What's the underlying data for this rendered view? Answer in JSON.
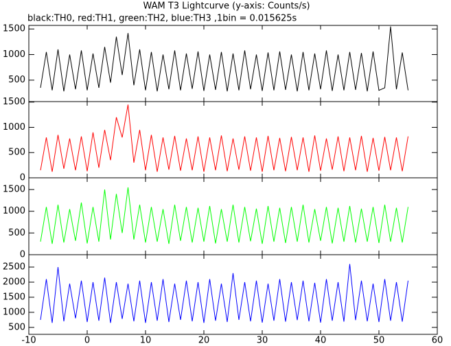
{
  "chart_data": [
    {
      "type": "line",
      "title": "WAM T3 Lightcurve (y-axis: Counts/s)",
      "subtitle": "black:TH0, red:TH1, green:TH2, blue:TH3 ,1bin = 0.015625s",
      "x": [
        -8,
        -7,
        -6,
        -5,
        -4,
        -3,
        -2,
        -1,
        0,
        1,
        2,
        3,
        4,
        5,
        6,
        7,
        8,
        9,
        10,
        11,
        12,
        13,
        14,
        15,
        16,
        17,
        18,
        19,
        20,
        21,
        22,
        23,
        24,
        25,
        26,
        27,
        28,
        29,
        30,
        31,
        32,
        33,
        34,
        35,
        36,
        37,
        38,
        39,
        40,
        41,
        42,
        43,
        44,
        45,
        46,
        47,
        48,
        49,
        50,
        51,
        52,
        53,
        54,
        55
      ],
      "series": [
        {
          "color": "#000000",
          "values": [
            350,
            1050,
            300,
            1100,
            280,
            1000,
            320,
            1080,
            300,
            1020,
            350,
            1150,
            450,
            1350,
            600,
            1420,
            400,
            1100,
            300,
            1050,
            280,
            1000,
            320,
            1080,
            300,
            1020,
            330,
            1060,
            290,
            1000,
            310,
            1050,
            280,
            1020,
            300,
            1080,
            320,
            1000,
            290,
            1040,
            300,
            1060,
            310,
            1000,
            280,
            1050,
            300,
            1020,
            320,
            1080,
            290,
            1000,
            300,
            1050,
            310,
            1030,
            280,
            1060,
            300,
            350,
            1550,
            320,
            1040,
            300
          ]
        }
      ],
      "ylim": [
        80,
        1570
      ],
      "yticks": [
        500,
        1000,
        1500
      ]
    },
    {
      "type": "line",
      "x": [
        -8,
        -7,
        -6,
        -5,
        -4,
        -3,
        -2,
        -1,
        0,
        1,
        2,
        3,
        4,
        5,
        6,
        7,
        8,
        9,
        10,
        11,
        12,
        13,
        14,
        15,
        16,
        17,
        18,
        19,
        20,
        21,
        22,
        23,
        24,
        25,
        26,
        27,
        28,
        29,
        30,
        31,
        32,
        33,
        34,
        35,
        36,
        37,
        38,
        39,
        40,
        41,
        42,
        43,
        44,
        45,
        46,
        47,
        48,
        49,
        50,
        51,
        52,
        53,
        54,
        55
      ],
      "series": [
        {
          "color": "#ff0000",
          "values": [
            150,
            800,
            120,
            850,
            180,
            780,
            150,
            820,
            130,
            900,
            200,
            950,
            350,
            1200,
            800,
            1450,
            300,
            950,
            150,
            850,
            120,
            800,
            160,
            830,
            140,
            780,
            150,
            820,
            120,
            800,
            150,
            840,
            130,
            780,
            160,
            820,
            140,
            800,
            120,
            830,
            150,
            790,
            130,
            810,
            150,
            800,
            120,
            840,
            140,
            780,
            160,
            820,
            130,
            800,
            150,
            830,
            120,
            790,
            140,
            810,
            150,
            800,
            130,
            820
          ]
        }
      ],
      "ylim": [
        0,
        1510
      ],
      "yticks": [
        0,
        500,
        1000,
        1500
      ]
    },
    {
      "type": "line",
      "x": [
        -8,
        -7,
        -6,
        -5,
        -4,
        -3,
        -2,
        -1,
        0,
        1,
        2,
        3,
        4,
        5,
        6,
        7,
        8,
        9,
        10,
        11,
        12,
        13,
        14,
        15,
        16,
        17,
        18,
        19,
        20,
        21,
        22,
        23,
        24,
        25,
        26,
        27,
        28,
        29,
        30,
        31,
        32,
        33,
        34,
        35,
        36,
        37,
        38,
        39,
        40,
        41,
        42,
        43,
        44,
        45,
        46,
        47,
        48,
        49,
        50,
        51,
        52,
        53,
        54,
        55
      ],
      "series": [
        {
          "color": "#00ff00",
          "values": [
            300,
            1100,
            250,
            1150,
            280,
            1050,
            320,
            1200,
            260,
            1100,
            300,
            1500,
            350,
            1400,
            500,
            1550,
            350,
            1150,
            280,
            1100,
            300,
            1050,
            250,
            1150,
            320,
            1100,
            280,
            1080,
            300,
            1120,
            260,
            1050,
            300,
            1150,
            280,
            1100,
            310,
            1060,
            250,
            1120,
            300,
            1080,
            270,
            1100,
            300,
            1150,
            280,
            1050,
            320,
            1100,
            260,
            1080,
            300,
            1120,
            280,
            1060,
            300,
            1100,
            270,
            1150,
            300,
            1080,
            280,
            1100
          ]
        }
      ],
      "ylim": [
        0,
        1770
      ],
      "yticks": [
        0,
        500,
        1000,
        1500
      ]
    },
    {
      "type": "line",
      "x": [
        -8,
        -7,
        -6,
        -5,
        -4,
        -3,
        -2,
        -1,
        0,
        1,
        2,
        3,
        4,
        5,
        6,
        7,
        8,
        9,
        10,
        11,
        12,
        13,
        14,
        15,
        16,
        17,
        18,
        19,
        20,
        21,
        22,
        23,
        24,
        25,
        26,
        27,
        28,
        29,
        30,
        31,
        32,
        33,
        34,
        35,
        36,
        37,
        38,
        39,
        40,
        41,
        42,
        43,
        44,
        45,
        46,
        47,
        48,
        49,
        50,
        51,
        52,
        53,
        54,
        55
      ],
      "series": [
        {
          "color": "#0000ff",
          "values": [
            750,
            2100,
            650,
            2500,
            700,
            1950,
            800,
            2050,
            680,
            2000,
            720,
            2150,
            650,
            2000,
            780,
            1950,
            700,
            2050,
            650,
            2000,
            720,
            2100,
            680,
            1950,
            750,
            2050,
            700,
            2000,
            650,
            2100,
            720,
            1950,
            680,
            2300,
            750,
            2000,
            700,
            2050,
            660,
            1950,
            720,
            2100,
            690,
            2000,
            740,
            2050,
            700,
            1980,
            660,
            2100,
            720,
            2000,
            690,
            2600,
            740,
            2050,
            700,
            1950,
            680,
            2100,
            720,
            2000,
            690,
            2050
          ]
        }
      ],
      "ylim": [
        270,
        2910
      ],
      "yticks": [
        500,
        1000,
        1500,
        2000,
        2500
      ],
      "xlim": [
        -10,
        60
      ],
      "xticks": [
        -10,
        0,
        10,
        20,
        30,
        40,
        50,
        60
      ]
    }
  ]
}
